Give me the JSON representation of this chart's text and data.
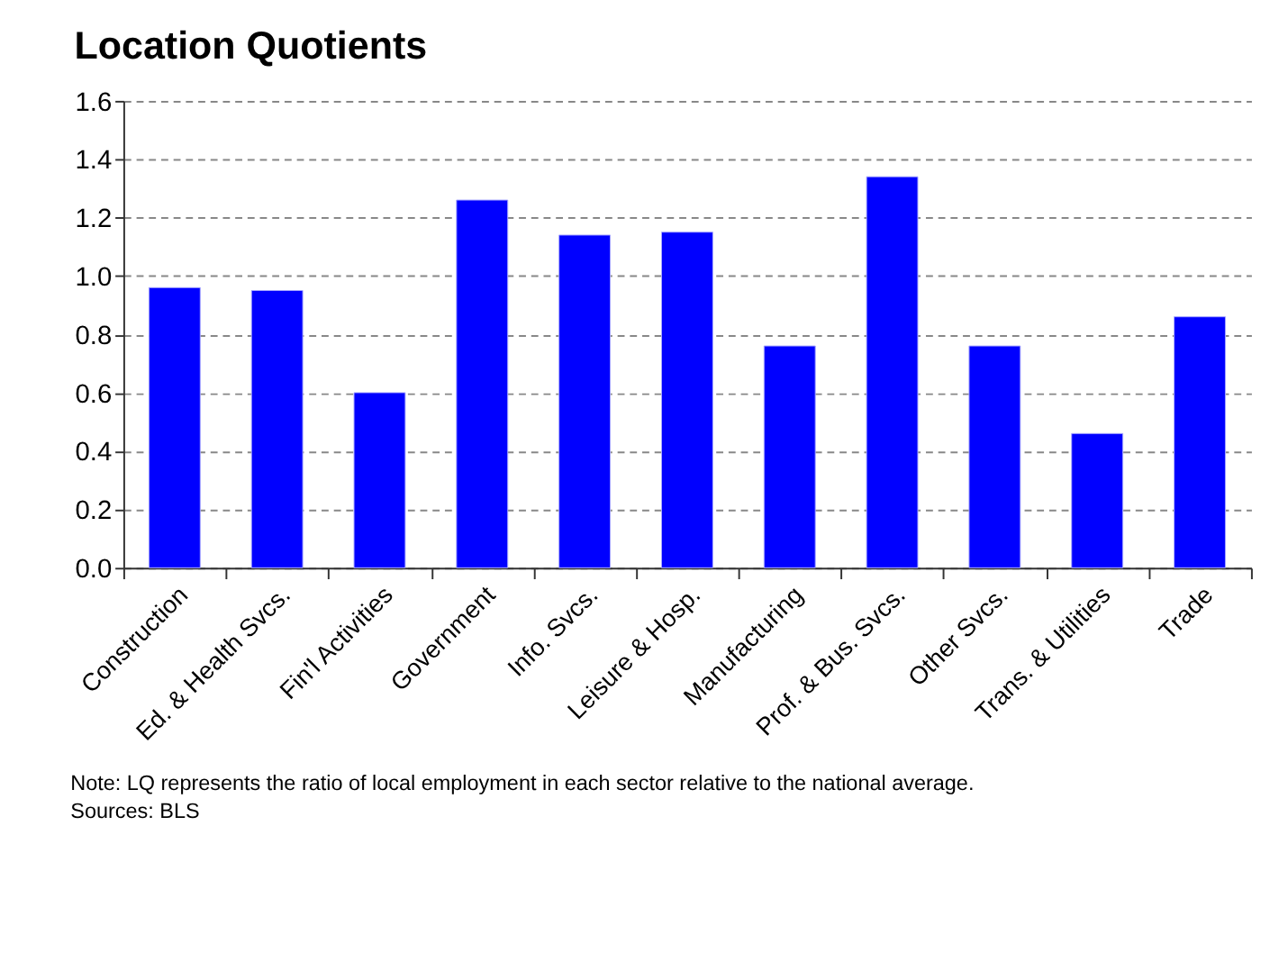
{
  "chart_data": {
    "type": "bar",
    "title": "Location Quotients",
    "categories": [
      "Construction",
      "Ed. & Health Svcs.",
      "Fin'l Activities",
      "Government",
      "Info. Svcs.",
      "Leisure & Hosp.",
      "Manufacturing",
      "Prof. & Bus. Svcs.",
      "Other Svcs.",
      "Trans. & Utilities",
      "Trade"
    ],
    "values": [
      0.96,
      0.95,
      0.6,
      1.26,
      1.14,
      1.15,
      0.76,
      1.34,
      0.76,
      0.46,
      0.86
    ],
    "color": "#0000ff",
    "ylim": [
      0,
      1.6
    ],
    "yticks": [
      {
        "value": 0,
        "label": "0.0"
      },
      {
        "value": 0.2,
        "label": "0.2"
      },
      {
        "value": 0.4,
        "label": "0.4"
      },
      {
        "value": 0.6,
        "label": "0.6"
      },
      {
        "value": 0.8,
        "label": "0.8"
      },
      {
        "value": 1.0,
        "label": "1.0"
      },
      {
        "value": 1.2,
        "label": "1.2"
      },
      {
        "value": 1.4,
        "label": "1.4"
      },
      {
        "value": 1.6,
        "label": "1.6"
      }
    ],
    "grid": "y",
    "annotations": [
      "Note: LQ represents the ratio of local employment in each sector relative to the national average.",
      "Sources: BLS"
    ]
  }
}
